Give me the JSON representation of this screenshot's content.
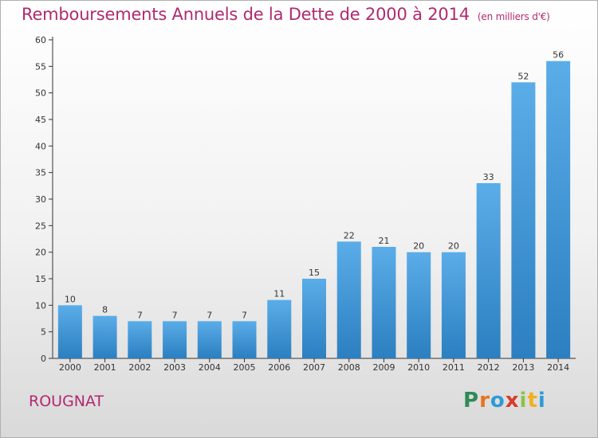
{
  "chart_data": {
    "type": "bar",
    "title": "Remboursements Annuels de la Dette de 2000 à 2014",
    "subtitle": "(en milliers d'€)",
    "categories": [
      "2000",
      "2001",
      "2002",
      "2003",
      "2004",
      "2005",
      "2006",
      "2007",
      "2008",
      "2009",
      "2010",
      "2011",
      "2012",
      "2013",
      "2014"
    ],
    "values": [
      10,
      8,
      7,
      7,
      7,
      7,
      11,
      15,
      22,
      21,
      20,
      20,
      33,
      52,
      56
    ],
    "xlabel": "",
    "ylabel": "",
    "ylim": [
      0,
      60
    ],
    "yticks": [
      0,
      5,
      10,
      15,
      20,
      25,
      30,
      35,
      40,
      45,
      50,
      55,
      60
    ],
    "grid": false,
    "bar_color_top": "#5aade8",
    "bar_color_bottom": "#2c7fc0"
  },
  "footer": {
    "commune": "ROUGNAT",
    "logo": "Proxiti"
  },
  "colors": {
    "title": "#b02a6e",
    "axis": "#333333",
    "logo_letters": [
      "#2e8b57",
      "#e8741c",
      "#2f9ad6",
      "#d93a2b",
      "#8bc34a",
      "#f2b01e",
      "#2f9ad6"
    ]
  }
}
